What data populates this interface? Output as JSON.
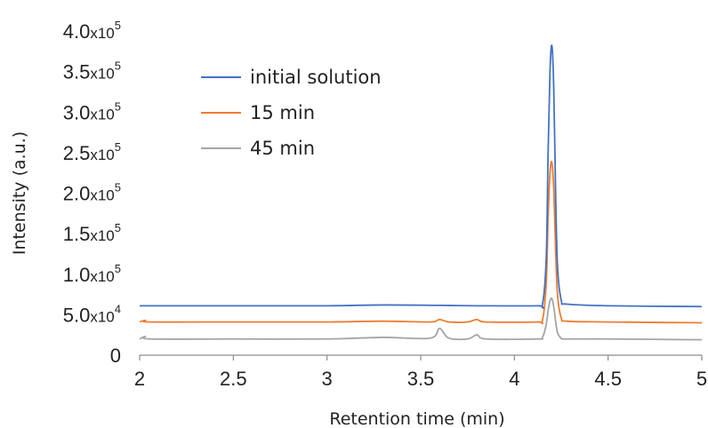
{
  "chart_data": {
    "type": "line",
    "xlabel": "Retention time (min)",
    "ylabel": "Intensity (a.u.)",
    "xlim": [
      2,
      5
    ],
    "ylim": [
      0,
      400000
    ],
    "x_ticks": [
      {
        "value": 2,
        "label": "2"
      },
      {
        "value": 2.5,
        "label": "2.5"
      },
      {
        "value": 3,
        "label": "3"
      },
      {
        "value": 3.5,
        "label": "3.5"
      },
      {
        "value": 4,
        "label": "4"
      },
      {
        "value": 4.5,
        "label": "4.5"
      },
      {
        "value": 5,
        "label": "5"
      }
    ],
    "y_ticks": [
      {
        "value": 0,
        "label": "0"
      },
      {
        "value": 50000,
        "mantissa": "5.0",
        "exponent": "4"
      },
      {
        "value": 100000,
        "mantissa": "1.0",
        "exponent": "5"
      },
      {
        "value": 150000,
        "mantissa": "1.5",
        "exponent": "5"
      },
      {
        "value": 200000,
        "mantissa": "2.0",
        "exponent": "5"
      },
      {
        "value": 250000,
        "mantissa": "2.5",
        "exponent": "5"
      },
      {
        "value": 300000,
        "mantissa": "3.0",
        "exponent": "5"
      },
      {
        "value": 350000,
        "mantissa": "3.5",
        "exponent": "5"
      },
      {
        "value": 400000,
        "mantissa": "4.0",
        "exponent": "5"
      }
    ],
    "legend_position": "upper-left",
    "grid": false,
    "series": [
      {
        "name": "initial solution",
        "color": "#4472C4",
        "x": [
          2.0,
          2.5,
          3.0,
          3.3,
          3.6,
          3.8,
          4.12,
          4.15,
          4.17,
          4.18,
          4.19,
          4.2,
          4.21,
          4.22,
          4.23,
          4.25,
          4.28,
          4.5,
          5.0
        ],
        "y": [
          61000,
          61000,
          61000,
          62000,
          61500,
          61000,
          61000,
          63000,
          120000,
          250000,
          350000,
          382000,
          330000,
          200000,
          110000,
          68000,
          63000,
          61000,
          60000
        ]
      },
      {
        "name": "15 min",
        "color": "#ED7D31",
        "x": [
          2.0,
          2.03,
          2.06,
          2.5,
          3.0,
          3.3,
          3.55,
          3.6,
          3.65,
          3.75,
          3.8,
          3.85,
          4.12,
          4.15,
          4.17,
          4.18,
          4.19,
          4.2,
          4.21,
          4.22,
          4.23,
          4.25,
          4.28,
          4.5,
          5.0
        ],
        "y": [
          41000,
          43000,
          41000,
          41000,
          41000,
          42000,
          41000,
          44000,
          41000,
          41000,
          44000,
          41000,
          41000,
          43000,
          90000,
          170000,
          225000,
          238000,
          205000,
          130000,
          75000,
          46000,
          42000,
          41000,
          40000
        ]
      },
      {
        "name": "45 min",
        "color": "#A5A5A5",
        "x": [
          2.0,
          2.03,
          2.06,
          2.5,
          3.0,
          3.3,
          3.55,
          3.6,
          3.65,
          3.75,
          3.8,
          3.85,
          4.12,
          4.15,
          4.17,
          4.18,
          4.19,
          4.2,
          4.21,
          4.22,
          4.23,
          4.25,
          4.28,
          4.5,
          5.0
        ],
        "y": [
          20000,
          23000,
          20000,
          20000,
          20000,
          22000,
          21000,
          33000,
          21000,
          20000,
          25000,
          20000,
          20000,
          22000,
          38000,
          55000,
          67000,
          70000,
          60000,
          42000,
          28000,
          21000,
          20000,
          20000,
          19000
        ]
      }
    ]
  }
}
